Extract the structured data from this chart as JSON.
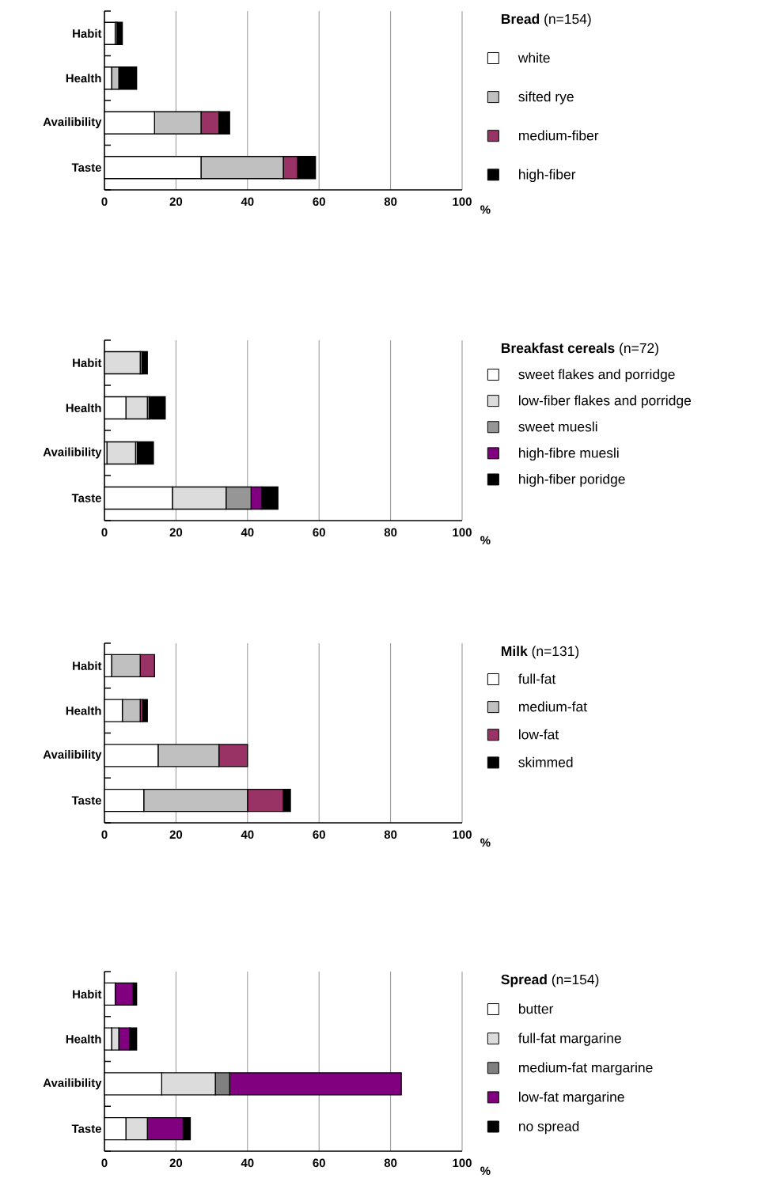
{
  "chart_data": [
    {
      "type": "bar",
      "orientation": "horizontal",
      "stacked": true,
      "legend_title": "**Bread** (n=154)",
      "xlabel": "%",
      "categories": [
        "Habit",
        "Health",
        "Availibility",
        "Taste"
      ],
      "xlim": [
        0,
        100
      ],
      "xticks": [
        0,
        20,
        40,
        60,
        80,
        100
      ],
      "grid": "x",
      "legend": "right",
      "series": [
        {
          "name": "white",
          "color": "#ffffff",
          "values": [
            3,
            2,
            14,
            27
          ]
        },
        {
          "name": "sifted rye",
          "color": "#c0c0c0",
          "values": [
            0.5,
            2,
            13,
            23
          ]
        },
        {
          "name": "medium-fiber",
          "color": "#993366",
          "values": [
            0,
            0,
            5,
            4
          ]
        },
        {
          "name": "high-fiber",
          "color": "#000000",
          "values": [
            1.5,
            5,
            3,
            5
          ]
        }
      ]
    },
    {
      "type": "bar",
      "orientation": "horizontal",
      "stacked": true,
      "legend_title": "**Breakfast cereals** (n=72)",
      "xlabel": "%",
      "categories": [
        "Habit",
        "Health",
        "Availibility",
        "Taste"
      ],
      "xlim": [
        0,
        100
      ],
      "xticks": [
        0,
        20,
        40,
        60,
        80,
        100
      ],
      "grid": "x",
      "legend": "right",
      "series": [
        {
          "name": "sweet flakes and porridge",
          "color": "#ffffff",
          "values": [
            0,
            6,
            0.7,
            19
          ]
        },
        {
          "name": "low-fiber flakes and porridge",
          "color": "#dcdcdc",
          "values": [
            10,
            6,
            8,
            15
          ]
        },
        {
          "name": "sweet muesli",
          "color": "#969696",
          "values": [
            0.5,
            0.5,
            0.5,
            7
          ]
        },
        {
          "name": "high-fibre muesli",
          "color": "#800080",
          "values": [
            0,
            0,
            0,
            3
          ]
        },
        {
          "name": "high-fiber poridge",
          "color": "#000000",
          "values": [
            1.5,
            4.5,
            4.5,
            4.5
          ]
        }
      ]
    },
    {
      "type": "bar",
      "orientation": "horizontal",
      "stacked": true,
      "legend_title": "**Milk** (n=131)",
      "xlabel": "%",
      "categories": [
        "Habit",
        "Health",
        "Availibility",
        "Taste"
      ],
      "xlim": [
        0,
        100
      ],
      "xticks": [
        0,
        20,
        40,
        60,
        80,
        100
      ],
      "grid": "x",
      "legend": "right",
      "series": [
        {
          "name": "full-fat",
          "color": "#ffffff",
          "values": [
            2,
            5,
            15,
            11
          ]
        },
        {
          "name": "medium-fat",
          "color": "#c0c0c0",
          "values": [
            8,
            5,
            17,
            29
          ]
        },
        {
          "name": "low-fat",
          "color": "#993366",
          "values": [
            4,
            0.7,
            8,
            10
          ]
        },
        {
          "name": "skimmed",
          "color": "#000000",
          "values": [
            0,
            1.3,
            0,
            2
          ]
        }
      ]
    },
    {
      "type": "bar",
      "orientation": "horizontal",
      "stacked": true,
      "legend_title": "**Spread** (n=154)",
      "xlabel": "%",
      "categories": [
        "Habit",
        "Health",
        "Availibility",
        "Taste"
      ],
      "xlim": [
        0,
        100
      ],
      "xticks": [
        0,
        20,
        40,
        60,
        80,
        100
      ],
      "grid": "x",
      "legend": "right",
      "series": [
        {
          "name": "butter",
          "color": "#ffffff",
          "values": [
            3,
            2,
            16,
            6
          ]
        },
        {
          "name": "full-fat margarine",
          "color": "#dcdcdc",
          "values": [
            0,
            2,
            15,
            6
          ]
        },
        {
          "name": "medium-fat margarine",
          "color": "#808080",
          "values": [
            0,
            0,
            4,
            0
          ]
        },
        {
          "name": "low-fat margarine",
          "color": "#800080",
          "values": [
            5,
            3,
            48,
            10
          ]
        },
        {
          "name": "no spread",
          "color": "#000000",
          "values": [
            1,
            2,
            0,
            2
          ]
        }
      ]
    }
  ]
}
